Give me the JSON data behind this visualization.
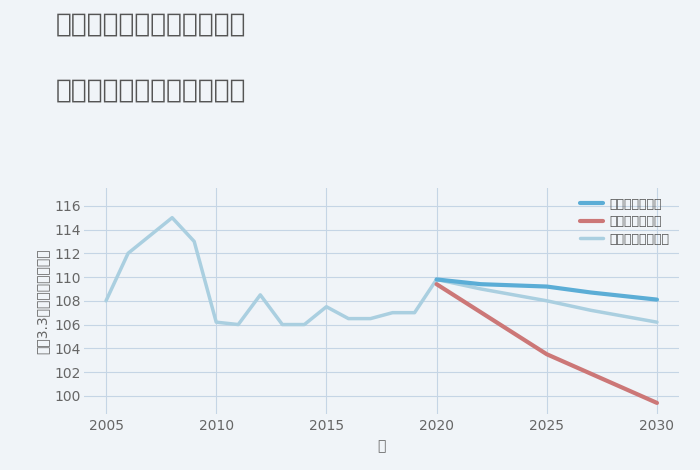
{
  "title_line1": "神奈川県秦野市沼代新町の",
  "title_line2": "中古マンションの価格推移",
  "xlabel": "年",
  "ylabel": "平（3.3㎡）単価（万円）",
  "background_color": "#f0f4f8",
  "plot_background": "#f0f4f8",
  "grid_color": "#c5d5e5",
  "ylim": [
    98.5,
    117.5
  ],
  "xlim": [
    2004.0,
    2031.0
  ],
  "yticks": [
    100,
    102,
    104,
    106,
    108,
    110,
    112,
    114,
    116
  ],
  "xticks": [
    2005,
    2010,
    2015,
    2020,
    2025,
    2030
  ],
  "normal_scenario_historical": {
    "x": [
      2005,
      2006,
      2007,
      2008,
      2009,
      2010,
      2011,
      2012,
      2013,
      2014,
      2015,
      2016,
      2017,
      2018,
      2019,
      2020
    ],
    "y": [
      108.0,
      112.0,
      113.5,
      115.0,
      113.0,
      106.2,
      106.0,
      108.5,
      106.0,
      106.0,
      107.5,
      106.5,
      106.5,
      107.0,
      107.0,
      109.8
    ],
    "color": "#aacfe0",
    "linewidth": 2.5,
    "label": "ノーマルシナリオ"
  },
  "normal_scenario_future": {
    "x": [
      2020,
      2022,
      2025,
      2027,
      2030
    ],
    "y": [
      109.8,
      109.0,
      108.0,
      107.2,
      106.2
    ],
    "color": "#aacfe0",
    "linewidth": 2.5
  },
  "good_scenario": {
    "x": [
      2020,
      2022,
      2025,
      2027,
      2030
    ],
    "y": [
      109.8,
      109.4,
      109.2,
      108.7,
      108.1
    ],
    "color": "#5badd6",
    "linewidth": 3.0,
    "label": "グッドシナリオ"
  },
  "bad_scenario": {
    "x": [
      2020,
      2025,
      2030
    ],
    "y": [
      109.4,
      103.5,
      99.4
    ],
    "color": "#cc7777",
    "linewidth": 3.0,
    "label": "バッドシナリオ"
  },
  "title_color": "#555555",
  "title_fontsize": 19,
  "axis_label_color": "#666666",
  "axis_label_fontsize": 10,
  "tick_fontsize": 10,
  "legend_fontsize": 9
}
